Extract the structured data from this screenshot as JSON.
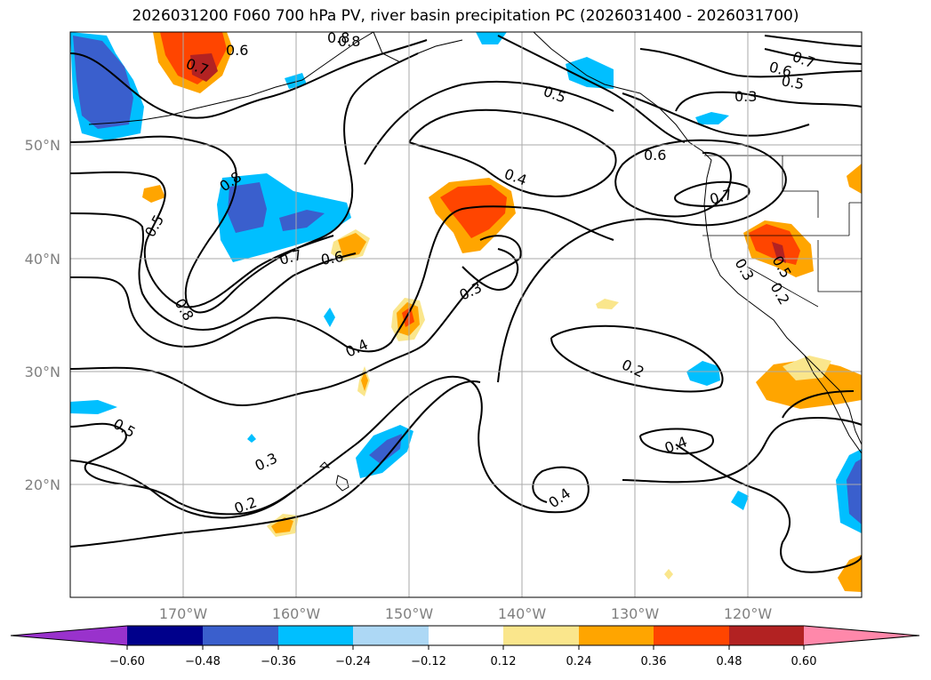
{
  "title": "2026031200 F060 700 hPa PV, river basin precipitation PC (2026031400 - 2026031700)",
  "map": {
    "lat_labels": [
      "50°N",
      "40°N",
      "30°N",
      "20°N"
    ],
    "lon_labels": [
      "170°W",
      "160°W",
      "150°W",
      "140°W",
      "130°W",
      "120°W"
    ],
    "contour_labels": [
      "0.6",
      "0.7",
      "0.8",
      "0.5",
      "0.4",
      "0.5",
      "0.8",
      "0.7",
      "0.6",
      "0.8",
      "0.4",
      "0.3",
      "0.5",
      "0.3",
      "0.6",
      "0.7",
      "0.7",
      "0.6",
      "0.5",
      "0.8",
      "0.3",
      "0.2",
      "0.2",
      "0.4",
      "0.4",
      "0.3",
      "0.2",
      "0.5"
    ]
  },
  "colorbar": {
    "ticks": [
      "−0.60",
      "−0.48",
      "−0.36",
      "−0.24",
      "−0.12",
      "0.12",
      "0.24",
      "0.36",
      "0.48",
      "0.60"
    ],
    "colors": [
      "#9932cc",
      "#00008b",
      "#3a5fcd",
      "#00bfff",
      "#add8f5",
      "#ffffff",
      "#fae68c",
      "#ffa500",
      "#ff4500",
      "#b22222",
      "#ff88aa"
    ]
  }
}
